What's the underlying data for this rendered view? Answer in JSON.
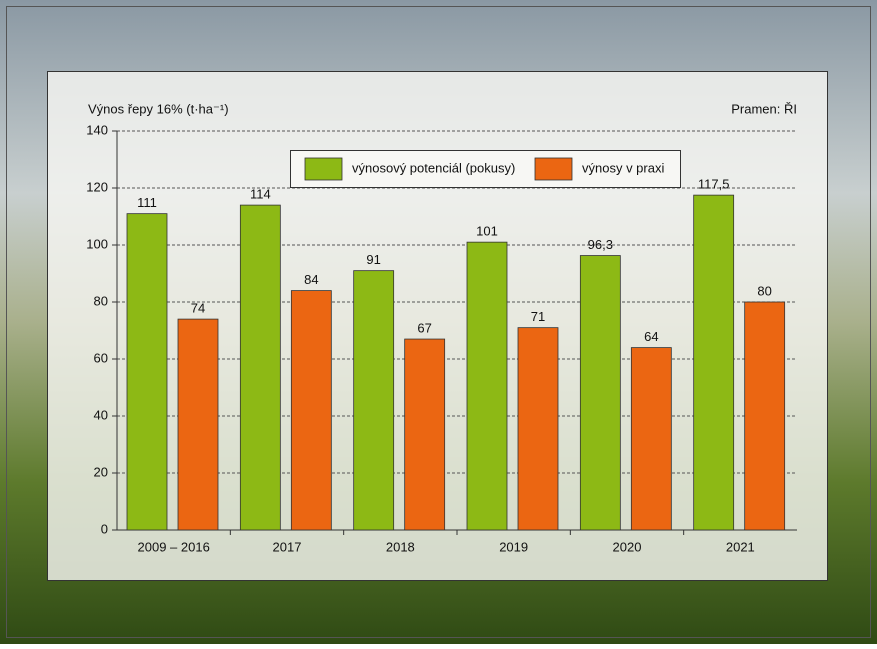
{
  "chart_data": {
    "type": "bar",
    "y_label": "Výnos řepy 16% (t·ha⁻¹)",
    "source": "Pramen: ŘI",
    "categories": [
      "2009 – 2016",
      "2017",
      "2018",
      "2019",
      "2020",
      "2021"
    ],
    "series": [
      {
        "name": "výnosový potenciál (pokusy)",
        "color": "#8db915",
        "values": [
          111,
          114,
          91,
          101,
          96.3,
          117.5
        ],
        "value_labels": [
          "111",
          "114",
          "91",
          "101",
          "96,3",
          "117,5"
        ]
      },
      {
        "name": "výnosy v praxi",
        "color": "#eb6612",
        "values": [
          74,
          84,
          67,
          71,
          64,
          80
        ]
      }
    ],
    "ylim": [
      0,
      140
    ],
    "yticks": [
      0,
      20,
      40,
      60,
      80,
      100,
      120,
      140
    ],
    "grid": true
  }
}
